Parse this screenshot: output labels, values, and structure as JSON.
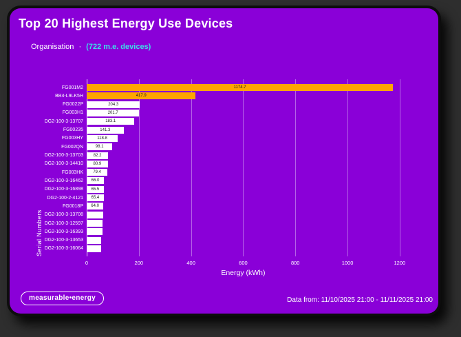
{
  "header": {
    "title": "Top 20 Highest Energy Use Devices",
    "org_label": "Organisation",
    "separator": "·",
    "devices_label": "(722 m.e. devices)"
  },
  "footer": {
    "logo_text": "measurable•energy",
    "date_range": "Data from: 11/10/2025 21:00 - 11/11/2025 21:00"
  },
  "colors": {
    "outer_bg": "#2e2e2e",
    "card_bg": "#8A00D8",
    "bar_default": "#FFFFFF",
    "bar_highlight": "#FFA500",
    "accent_cyan": "#3DDDE8",
    "grid": "rgba(255,255,255,0.38)",
    "bar_value_text": "#1a1a1a"
  },
  "chart_data": {
    "type": "bar",
    "orientation": "horizontal",
    "title": "Top 20 Highest Energy Use Devices",
    "xlabel": "Energy (kWh)",
    "ylabel": "Serial Numbers",
    "x_ticks": [
      0,
      200,
      400,
      600,
      800,
      1000,
      1200
    ],
    "xlim": [
      0,
      1240
    ],
    "grid": "vertical-only",
    "legend": "none",
    "categories": [
      "FG001M2",
      "BB4-L9LK5H",
      "FG0022P",
      "FG003H1",
      "DG2-100-3-13707",
      "FG00235",
      "FG003HY",
      "FG002QN",
      "DG2-100-3-13703",
      "DG2-100-3-14410",
      "FG003HK",
      "DG2-100-3-16462",
      "DG2-100-3-16898",
      "DG2-100-2-4121",
      "FG0018P",
      "DG2-100-3-13708",
      "DG2-100-3-12597",
      "DG2-100-3-16393",
      "DG2-100-3-13653",
      "DG2-100-3-16064"
    ],
    "values": [
      1174.7,
      417.9,
      204.3,
      201.7,
      183.1,
      141.3,
      118.8,
      98.1,
      82.2,
      80.9,
      79.4,
      66.0,
      65.5,
      65.4,
      64.0,
      62.0,
      61.0,
      60.0,
      56.0,
      55.0
    ],
    "bar_labels": [
      "1174.7",
      "417.9",
      "204.3",
      "201.7",
      "183.1",
      "141.3",
      "118.8",
      "98.1",
      "82.2",
      "80.9",
      "79.4",
      "66.0",
      "65.5",
      "65.4",
      "64.0",
      "",
      "",
      "",
      "",
      ""
    ],
    "highlight_indices": [
      0,
      1
    ]
  }
}
